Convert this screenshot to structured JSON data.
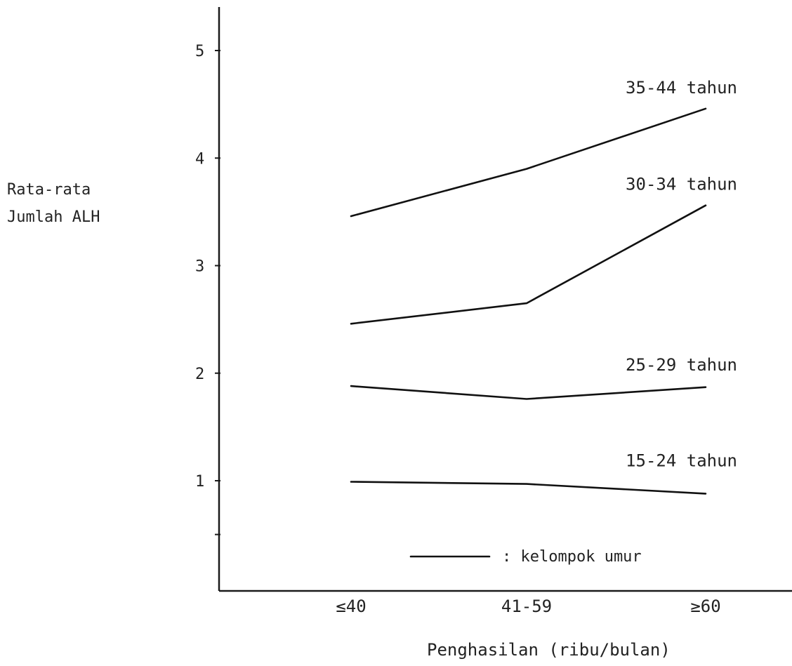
{
  "chart_data": {
    "type": "line",
    "title": "",
    "ylabel_lines": [
      "Rata-rata",
      "Jumlah ALH"
    ],
    "xlabel": "Penghasilan (ribu/bulan)",
    "categories": [
      "≤40",
      "41-59",
      "≥60"
    ],
    "yticks": [
      "1",
      "2",
      "3",
      "4",
      "5"
    ],
    "ylim": [
      0,
      5.4
    ],
    "grid": false,
    "series": [
      {
        "name": "35-44 tahun",
        "values": [
          3.46,
          3.9,
          4.46
        ]
      },
      {
        "name": "30-34 tahun",
        "values": [
          2.46,
          2.65,
          3.56
        ]
      },
      {
        "name": "25-29 tahun",
        "values": [
          1.88,
          1.76,
          1.87
        ]
      },
      {
        "name": "15-24 tahun",
        "values": [
          0.99,
          0.97,
          0.88
        ]
      }
    ],
    "legend": {
      "text": ": kelompok umur",
      "placement": "bottom-right"
    }
  }
}
